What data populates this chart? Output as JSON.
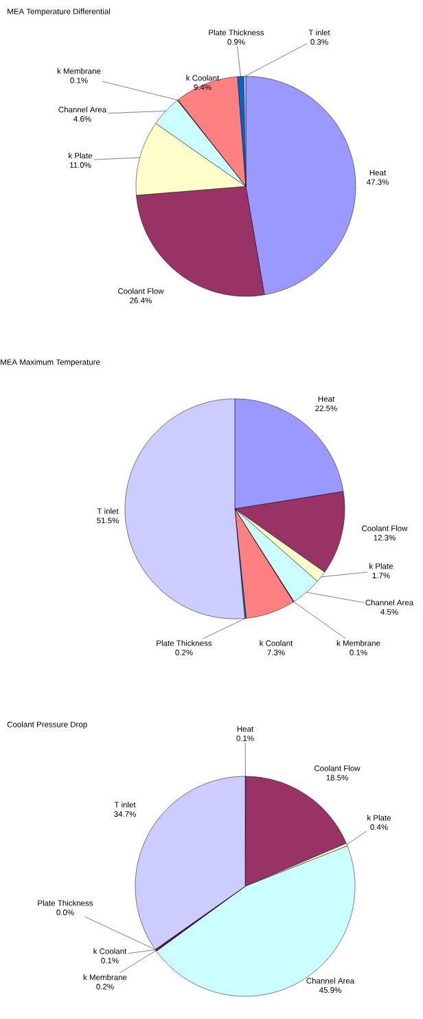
{
  "chart_data": [
    {
      "type": "pie",
      "title": "MEA Temperature Differential",
      "categories": [
        "Heat",
        "Coolant Flow",
        "k Plate",
        "Channel Area",
        "k Membrane",
        "k Coolant",
        "Plate Thickness",
        "T inlet"
      ],
      "values": [
        47.3,
        26.4,
        11.0,
        4.6,
        0.1,
        9.4,
        0.9,
        0.3
      ],
      "value_labels": [
        "47.3%",
        "26.4%",
        "11.0%",
        "4.6%",
        "0.1%",
        "9.4%",
        "0.9%",
        "0.3%"
      ],
      "colors": [
        "#9999ff",
        "#993366",
        "#ffffcc",
        "#ccffff",
        "#660066",
        "#ff8080",
        "#0066cc",
        "#ccccff"
      ]
    },
    {
      "type": "pie",
      "title": "MEA Maximum Temperature",
      "categories": [
        "Heat",
        "Coolant Flow",
        "k Plate",
        "Channel Area",
        "k Membrane",
        "k Coolant",
        "Plate Thickness",
        "T inlet"
      ],
      "values": [
        22.5,
        12.3,
        1.7,
        4.5,
        0.1,
        7.3,
        0.2,
        51.5
      ],
      "value_labels": [
        "22.5%",
        "12.3%",
        "1.7%",
        "4.5%",
        "0.1%",
        "7.3%",
        "0.2%",
        "51.5%"
      ],
      "colors": [
        "#9999ff",
        "#993366",
        "#ffffcc",
        "#ccffff",
        "#660066",
        "#ff8080",
        "#0066cc",
        "#ccccff"
      ]
    },
    {
      "type": "pie",
      "title": "Coolant Pressure Drop",
      "categories": [
        "Heat",
        "Coolant Flow",
        "k Plate",
        "Channel Area",
        "k Membrane",
        "k Coolant",
        "Plate Thickness",
        "T inlet"
      ],
      "values": [
        0.1,
        18.5,
        0.4,
        45.9,
        0.2,
        0.1,
        0.0,
        34.7
      ],
      "value_labels": [
        "0.1%",
        "18.5%",
        "0.4%",
        "45.9%",
        "0.2%",
        "0.1%",
        "0.0%",
        "34.7%"
      ],
      "colors": [
        "#9999ff",
        "#993366",
        "#ffffcc",
        "#ccffff",
        "#660066",
        "#ff8080",
        "#0066cc",
        "#ccccff"
      ]
    }
  ]
}
